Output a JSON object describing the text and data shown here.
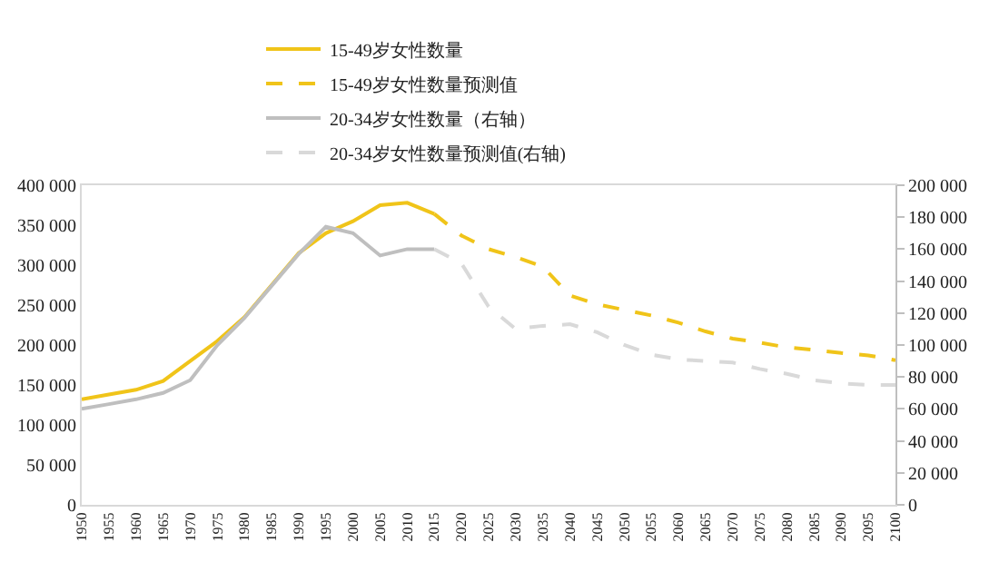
{
  "chart_data": {
    "type": "line",
    "legend": "top",
    "grid": false,
    "xlim": [
      1950,
      2100
    ],
    "xticks": [
      1950,
      1955,
      1960,
      1965,
      1970,
      1975,
      1980,
      1985,
      1990,
      1995,
      2000,
      2005,
      2010,
      2015,
      2020,
      2025,
      2030,
      2035,
      2040,
      2045,
      2050,
      2055,
      2060,
      2065,
      2070,
      2075,
      2080,
      2085,
      2090,
      2095,
      2100
    ],
    "ylim": [
      0,
      400000
    ],
    "yticks": [
      {
        "value": 0,
        "label": "0"
      },
      {
        "value": 50000,
        "label": "50 000"
      },
      {
        "value": 100000,
        "label": "100 000"
      },
      {
        "value": 150000,
        "label": "150 000"
      },
      {
        "value": 200000,
        "label": "200 000"
      },
      {
        "value": 250000,
        "label": "250 000"
      },
      {
        "value": 300000,
        "label": "300 000"
      },
      {
        "value": 350000,
        "label": "350 000"
      },
      {
        "value": 400000,
        "label": "400 000"
      }
    ],
    "y2lim": [
      0,
      200000
    ],
    "y2ticks": [
      {
        "value": 0,
        "label": "0"
      },
      {
        "value": 20000,
        "label": "20 000"
      },
      {
        "value": 40000,
        "label": "40 000"
      },
      {
        "value": 60000,
        "label": "60 000"
      },
      {
        "value": 80000,
        "label": "80 000"
      },
      {
        "value": 100000,
        "label": "100 000"
      },
      {
        "value": 120000,
        "label": "120 000"
      },
      {
        "value": 140000,
        "label": "140 000"
      },
      {
        "value": 160000,
        "label": "160 000"
      },
      {
        "value": 180000,
        "label": "180 000"
      },
      {
        "value": 200000,
        "label": "200 000"
      }
    ],
    "series": [
      {
        "name": "15-49岁女性数量",
        "color": "#f0c419",
        "line_style": "solid",
        "x": [
          1950,
          1955,
          1960,
          1965,
          1970,
          1975,
          1980,
          1985,
          1990,
          1995,
          2000,
          2005,
          2010,
          2015
        ],
        "values": [
          132000,
          138000,
          144000,
          155000,
          180000,
          205000,
          235000,
          275000,
          315000,
          340000,
          355000,
          375000,
          378000,
          364000
        ]
      },
      {
        "name": "20-34岁女性数量（右轴）",
        "color": "#bfbfbf",
        "line_style": "solid",
        "axis": "y2",
        "x": [
          1950,
          1955,
          1960,
          1965,
          1970,
          1975,
          1980,
          1985,
          1990,
          1995,
          2000,
          2005,
          2010,
          2015
        ],
        "values": [
          60000,
          63000,
          66000,
          70000,
          78000,
          100000,
          117000,
          137000,
          157000,
          174000,
          170000,
          156000,
          160000,
          160000
        ]
      },
      {
        "name": "15-49岁女性数量预测值",
        "color": "#f0c419",
        "line_style": "dashed",
        "x": [
          2015,
          2020,
          2025,
          2030,
          2035,
          2040,
          2045,
          2050,
          2055,
          2060,
          2065,
          2070,
          2075,
          2080,
          2085,
          2090,
          2095,
          2100
        ],
        "values": [
          364000,
          337000,
          320000,
          310000,
          298000,
          262000,
          251000,
          244000,
          237000,
          228000,
          217000,
          208000,
          203000,
          197000,
          194000,
          190000,
          187000,
          181000
        ]
      },
      {
        "name": "20-34岁女性数量预测值(右轴)",
        "color": "#d9d9d9",
        "line_style": "dashed",
        "axis": "y2",
        "x": [
          2015,
          2020,
          2025,
          2030,
          2035,
          2040,
          2045,
          2050,
          2055,
          2060,
          2065,
          2070,
          2075,
          2080,
          2085,
          2090,
          2095,
          2100
        ],
        "values": [
          160000,
          151000,
          124000,
          110000,
          112000,
          113000,
          108000,
          100000,
          94000,
          91000,
          90000,
          89000,
          85000,
          82000,
          78000,
          76000,
          75000,
          75000
        ]
      }
    ]
  }
}
